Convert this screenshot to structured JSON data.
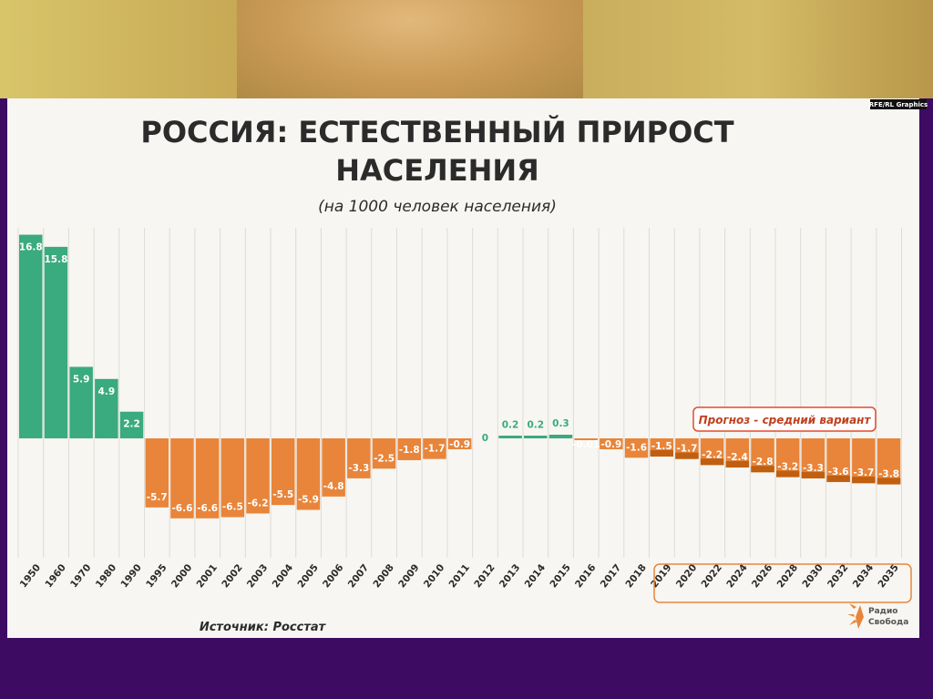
{
  "title_line1": "РОССИЯ: ЕСТЕСТВЕННЫЙ ПРИРОСТ",
  "title_line2": "НАСЕЛЕНИЯ",
  "subtitle": "(на 1000 человек населения)",
  "credit": "RFE/RL Graphics",
  "forecast_label": "Прогноз - средний вариант",
  "source": "Источник: Росстат",
  "logo_text": [
    "Радио",
    "Свобода"
  ],
  "colors": {
    "positive_actual": "#3aaa7f",
    "negative_actual": "#e8853a",
    "forecast": "#c05f10",
    "forecast_box": "#e14b2e",
    "title": "#2b2b2b",
    "background": "#f7f6f2",
    "frame": "#3e0b63"
  },
  "chart_data": {
    "type": "bar",
    "title": "РОССИЯ: ЕСТЕСТВЕННЫЙ ПРИРОСТ НАСЕЛЕНИЯ",
    "subtitle": "(на 1000 человек населения)",
    "categories": [
      "1950",
      "1960",
      "1970",
      "1980",
      "1990",
      "1995",
      "2000",
      "2001",
      "2002",
      "2003",
      "2004",
      "2005",
      "2006",
      "2007",
      "2008",
      "2009",
      "2010",
      "2011",
      "2012",
      "2013",
      "2014",
      "2015",
      "2016",
      "2017",
      "2018",
      "2019",
      "2020",
      "2022",
      "2024",
      "2026",
      "2028",
      "2030",
      "2032",
      "2034",
      "2035"
    ],
    "values": [
      16.8,
      15.8,
      5.9,
      4.9,
      2.2,
      -5.7,
      -6.6,
      -6.6,
      -6.5,
      -6.2,
      -5.5,
      -5.9,
      -4.8,
      -3.3,
      -2.5,
      -1.8,
      -1.7,
      -0.9,
      0,
      0.2,
      0.2,
      0.3,
      -0.01,
      -0.9,
      -1.6,
      -1.5,
      -1.7,
      -2.2,
      -2.4,
      -2.8,
      -3.2,
      -3.3,
      -3.6,
      -3.7,
      -3.8
    ],
    "value_labels": [
      "16.8",
      "15.8",
      "5.9",
      "4.9",
      "2.2",
      "-5.7",
      "-6.6",
      "-6.6",
      "-6.5",
      "-6.2",
      "-5.5",
      "-5.9",
      "-4.8",
      "-3.3",
      "-2.5",
      "-1.8",
      "-1.7",
      "-0.9",
      "0",
      "0.2",
      "0.2",
      "0.3",
      "-0.01",
      "-0.9",
      "-1.6",
      "-1.5",
      "-1.7",
      "-2.2",
      "-2.4",
      "-2.8",
      "-3.2",
      "-3.3",
      "-3.6",
      "-3.7",
      "-3.8"
    ],
    "forecast_from": "2019",
    "xlabel": "",
    "ylabel": ""
  }
}
